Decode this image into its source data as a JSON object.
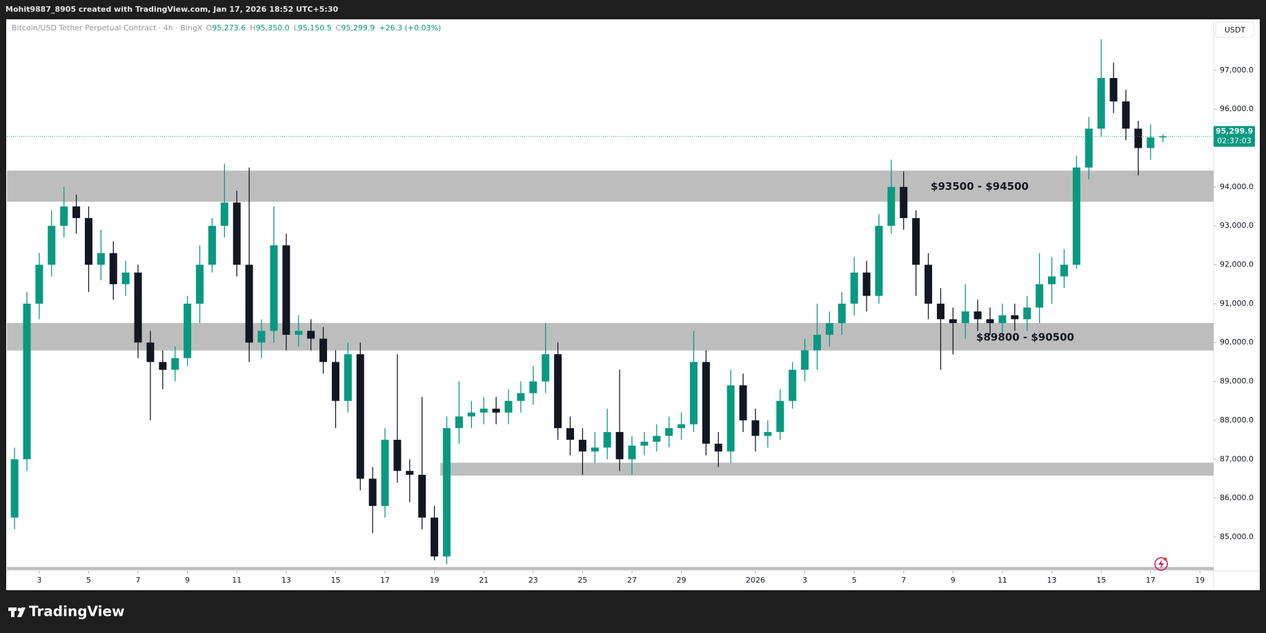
{
  "header": {
    "caption": "Mohit9887_8905 created with TradingView.com, Jan 17, 2026 18:52 UTC+5:30"
  },
  "footer": {
    "brand": "TradingView"
  },
  "chart_data": {
    "type": "candlestick",
    "symbol": "Bitcoin/USD Tether Perpetual Contract · 4h · BingX",
    "ohlc": [
      {
        "key": "O",
        "label": "95,273.6"
      },
      {
        "key": "H",
        "label": "95,350.0"
      },
      {
        "key": "L",
        "label": "95,150.5"
      },
      {
        "key": "C",
        "label": "95,299.9"
      }
    ],
    "change": "+26.3 (+0.03%)",
    "currency": "USDT",
    "up_color": "#089981",
    "down_color": "#131722",
    "x": [
      1,
      1.5,
      2,
      2.5,
      3,
      3.5,
      4,
      4.5,
      5,
      5.5,
      6,
      6.5,
      7,
      7.5,
      8,
      8.5,
      9,
      9.5,
      10,
      10.5,
      11,
      11.5,
      12,
      12.5,
      13,
      13.5,
      14,
      14.5,
      15,
      15.5,
      16,
      16.5,
      17,
      17.5,
      18,
      18.5,
      19,
      19.5,
      20,
      20.5,
      21,
      21.5,
      22,
      22.5,
      23,
      23.5,
      24,
      24.5,
      25,
      25.5,
      26,
      26.5,
      27,
      27.5,
      28,
      28.5,
      29,
      29.5,
      30,
      30.5,
      31,
      31.5,
      32,
      32.5,
      33,
      33.5,
      34,
      34.5,
      35,
      35.5,
      36,
      36.5,
      37,
      37.5,
      38,
      38.5,
      39,
      39.5,
      40,
      40.5,
      41,
      41.5,
      42,
      42.5,
      43,
      43.5,
      44,
      44.5,
      45,
      45.5,
      46,
      46.5,
      47,
      47.5
    ],
    "open": [
      85500,
      87000,
      91000,
      92000,
      93000,
      93500,
      93200,
      92000,
      92300,
      91500,
      91800,
      90000,
      89500,
      89300,
      89600,
      91000,
      92000,
      93000,
      93600,
      92000,
      90000,
      90300,
      92500,
      90200,
      90300,
      90100,
      89500,
      88500,
      89700,
      86500,
      85800,
      87500,
      86700,
      86600,
      85500,
      84500,
      87800,
      88100,
      88200,
      88300,
      88200,
      88500,
      88700,
      89000,
      89700,
      87800,
      87500,
      87200,
      87300,
      87700,
      87000,
      87350,
      87450,
      87600,
      87800,
      87900,
      89500,
      87400,
      87200,
      88900,
      88000,
      87600,
      87700,
      88500,
      89300,
      89800,
      90200,
      90500,
      91000,
      91800,
      91200,
      93000,
      94000,
      93200,
      92000,
      91000,
      90600,
      90500,
      90800,
      90600,
      90500,
      90700,
      90600,
      90900,
      91500,
      91700,
      92000,
      94500,
      95500,
      96800,
      96200,
      95500,
      95000,
      95273.6
    ],
    "high": [
      87300,
      91300,
      92300,
      93400,
      94000,
      93800,
      93500,
      92900,
      92600,
      92100,
      92000,
      90300,
      89800,
      89900,
      91200,
      92500,
      93200,
      94600,
      93900,
      94500,
      90600,
      93500,
      92800,
      90700,
      90600,
      90400,
      89800,
      90000,
      90000,
      86800,
      87800,
      89700,
      87000,
      88600,
      85800,
      88100,
      89000,
      88500,
      88600,
      88600,
      88800,
      89000,
      89400,
      90500,
      90000,
      88100,
      87800,
      87700,
      88300,
      89300,
      87600,
      87700,
      87900,
      88100,
      88200,
      90300,
      89800,
      87700,
      89300,
      89200,
      88300,
      88000,
      88800,
      89500,
      90100,
      91000,
      90800,
      91300,
      92200,
      92100,
      93300,
      94700,
      94400,
      93400,
      92300,
      91400,
      90900,
      91500,
      91100,
      90900,
      91000,
      91000,
      91200,
      92300,
      92200,
      92400,
      94800,
      95800,
      97800,
      97200,
      96500,
      95700,
      95600,
      95350
    ],
    "low": [
      85200,
      86700,
      90600,
      91700,
      92700,
      92800,
      91300,
      91600,
      91100,
      91200,
      89600,
      88000,
      88800,
      89000,
      89400,
      90500,
      91800,
      92700,
      91700,
      89500,
      89600,
      90000,
      89800,
      89900,
      89800,
      89200,
      87800,
      88200,
      86200,
      85100,
      85500,
      86400,
      85900,
      85200,
      84400,
      84300,
      87400,
      87800,
      87900,
      87900,
      87900,
      88200,
      88400,
      88700,
      87500,
      87100,
      86600,
      86900,
      87000,
      86700,
      86600,
      87100,
      87200,
      87300,
      87500,
      87700,
      87100,
      86800,
      86900,
      87700,
      87200,
      87300,
      87500,
      88300,
      89000,
      89300,
      89900,
      90200,
      90700,
      90800,
      91000,
      92800,
      92900,
      91200,
      90600,
      89300,
      89700,
      90100,
      90300,
      90200,
      90200,
      90300,
      90300,
      90500,
      91000,
      91400,
      91900,
      94200,
      95300,
      95900,
      95200,
      94300,
      94700,
      95150.5
    ],
    "close": [
      87000,
      91000,
      92000,
      93000,
      93500,
      93200,
      92000,
      92300,
      91500,
      91800,
      90000,
      89500,
      89300,
      89600,
      91000,
      92000,
      93000,
      93600,
      92000,
      90000,
      90300,
      92500,
      90200,
      90300,
      90100,
      89500,
      88500,
      89700,
      86500,
      85800,
      87500,
      86700,
      86600,
      85500,
      84500,
      87800,
      88100,
      88200,
      88300,
      88200,
      88500,
      88700,
      89000,
      89700,
      87800,
      87500,
      87200,
      87300,
      87700,
      87000,
      87350,
      87450,
      87600,
      87800,
      87900,
      89500,
      87400,
      87200,
      88900,
      88000,
      87600,
      87700,
      88500,
      89300,
      89800,
      90200,
      90500,
      91000,
      91800,
      91200,
      93000,
      94000,
      93200,
      92000,
      91000,
      90600,
      90500,
      90800,
      90600,
      90500,
      90700,
      90600,
      90900,
      91500,
      91700,
      92000,
      94500,
      95500,
      96800,
      96200,
      95500,
      95000,
      95273.6,
      95299.9
    ],
    "xlim": [
      0.69,
      49.55
    ],
    "xticks": [
      {
        "value": 2,
        "label": "3"
      },
      {
        "value": 4,
        "label": "5"
      },
      {
        "value": 6,
        "label": "7"
      },
      {
        "value": 8,
        "label": "9"
      },
      {
        "value": 10,
        "label": "11"
      },
      {
        "value": 12,
        "label": "13"
      },
      {
        "value": 14,
        "label": "15"
      },
      {
        "value": 16,
        "label": "17"
      },
      {
        "value": 18,
        "label": "19"
      },
      {
        "value": 20,
        "label": "21"
      },
      {
        "value": 22,
        "label": "23"
      },
      {
        "value": 24,
        "label": "25"
      },
      {
        "value": 26,
        "label": "27"
      },
      {
        "value": 28,
        "label": "29"
      },
      {
        "value": 31,
        "label": "2026"
      },
      {
        "value": 33,
        "label": "3"
      },
      {
        "value": 35,
        "label": "5"
      },
      {
        "value": 37,
        "label": "7"
      },
      {
        "value": 39,
        "label": "9"
      },
      {
        "value": 41,
        "label": "11"
      },
      {
        "value": 43,
        "label": "13"
      },
      {
        "value": 45,
        "label": "15"
      },
      {
        "value": 47,
        "label": "17"
      },
      {
        "value": 49,
        "label": "19"
      }
    ],
    "ylim": [
      84130,
      98310
    ],
    "yticks": [
      {
        "value": 85000,
        "label": "85,000.0"
      },
      {
        "value": 86000,
        "label": "86,000.0"
      },
      {
        "value": 87000,
        "label": "87,000.0"
      },
      {
        "value": 88000,
        "label": "88,000.0"
      },
      {
        "value": 89000,
        "label": "89,000.0"
      },
      {
        "value": 90000,
        "label": "90,000.0"
      },
      {
        "value": 91000,
        "label": "91,000.0"
      },
      {
        "value": 92000,
        "label": "92,000.0"
      },
      {
        "value": 93000,
        "label": "93,000.0"
      },
      {
        "value": 94000,
        "label": "94,000.0"
      },
      {
        "value": 96000,
        "label": "96,000.0"
      },
      {
        "value": 97000,
        "label": "97,000.0"
      }
    ],
    "zones": [
      {
        "low": 93620,
        "high": 94420,
        "label": "$93500 - $94500",
        "color": "#bdbdbd"
      },
      {
        "low": 89796,
        "high": 90502,
        "label": "$89800 - $90500",
        "color": "#bdbdbd"
      },
      {
        "low": 86579,
        "high": 86910,
        "start": 18.24,
        "color": "#bdbdbd"
      },
      {
        "low": 84150,
        "high": 84230,
        "color": "#bdbdbd"
      }
    ],
    "last_price": {
      "value": 95299.9,
      "label": "95,299.9",
      "countdown": "02:37:03"
    }
  }
}
